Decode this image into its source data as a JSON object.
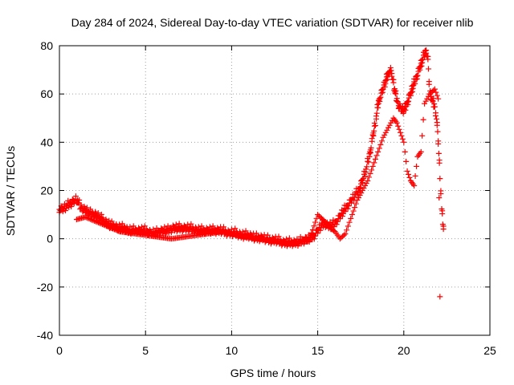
{
  "chart_data": {
    "type": "scatter",
    "title": "Day 284 of 2024, Sidereal Day-to-day VTEC variation (SDTVAR) for receiver nlib",
    "xlabel": "GPS time / hours",
    "ylabel": "SDTVAR / TECUs",
    "xlim": [
      0,
      25
    ],
    "ylim": [
      -40,
      80
    ],
    "xticks": [
      "0",
      "5",
      "10",
      "15",
      "20",
      "25"
    ],
    "yticks": [
      "-40",
      "-20",
      "0",
      "20",
      "40",
      "60",
      "80"
    ],
    "grid": true,
    "marker": "plus",
    "series_color": "#ff0000",
    "series": [
      {
        "name": "SDTVAR",
        "x": [
          0.0,
          0.2,
          0.4,
          0.6,
          0.8,
          1.0,
          1.2,
          1.4,
          1.6,
          1.8,
          2.0,
          2.2,
          2.4,
          2.6,
          2.8,
          3.0,
          3.2,
          3.4,
          3.6,
          3.8,
          4.0,
          4.3,
          4.6,
          5.0,
          5.3,
          5.6,
          6.0,
          6.3,
          6.6,
          7.0,
          7.3,
          7.6,
          8.0,
          8.3,
          8.7,
          9.0,
          9.4,
          9.8,
          10.2,
          10.6,
          11.0,
          11.4,
          11.8,
          12.2,
          12.6,
          13.0,
          13.4,
          13.8,
          14.2,
          14.6,
          14.8,
          15.0,
          15.2,
          15.4,
          15.6,
          15.8,
          16.0,
          16.2,
          16.4,
          16.6,
          16.8,
          17.0,
          17.2,
          17.4,
          17.6,
          17.8,
          18.0,
          18.1,
          18.2,
          18.3,
          18.4,
          18.5,
          18.6,
          18.7,
          18.8,
          18.9,
          19.0,
          19.1,
          19.2,
          19.3,
          19.4,
          19.5,
          19.6,
          19.7,
          19.8,
          19.9,
          20.0,
          20.1,
          20.2,
          20.3,
          20.4,
          20.5,
          20.6,
          20.7,
          20.8,
          20.9,
          21.0,
          21.1,
          21.2,
          21.3,
          21.4,
          21.5,
          21.6,
          21.7,
          21.8,
          21.9,
          22.0,
          22.1,
          22.2,
          22.3
        ],
        "y": [
          12,
          12,
          13,
          14,
          15,
          16,
          13,
          12,
          11,
          10,
          10,
          9,
          8,
          7,
          6,
          5,
          5,
          4,
          4,
          4,
          3,
          3,
          3,
          3,
          2,
          2,
          3,
          3,
          4,
          4,
          4,
          4,
          3,
          3,
          3,
          3,
          3,
          2,
          2,
          1,
          1,
          0,
          0,
          -1,
          -1,
          -2,
          -2,
          -2,
          -1,
          0,
          1,
          3,
          5,
          6,
          5,
          5,
          6,
          8,
          10,
          12,
          14,
          16,
          18,
          20,
          24,
          28,
          34,
          38,
          42,
          46,
          50,
          55,
          58,
          60,
          62,
          64,
          66,
          68,
          70,
          68,
          64,
          60,
          57,
          55,
          54,
          53,
          53,
          54,
          56,
          58,
          60,
          62,
          64,
          66,
          68,
          70,
          72,
          74,
          76,
          78,
          74,
          60,
          58,
          56,
          54,
          50,
          40,
          26,
          12,
          4
        ],
        "x2": [
          1.0,
          1.5,
          2.5,
          3.5,
          4.5,
          5.5,
          6.5,
          7.5,
          8.5,
          9.5,
          10.5,
          11.5,
          12.5,
          13.5,
          14.5,
          15.0,
          15.3,
          15.6,
          15.8,
          16.0,
          16.3,
          16.6,
          17.0,
          17.3,
          17.6,
          17.9,
          18.2,
          18.5,
          18.8,
          19.1,
          19.4,
          19.6,
          19.8,
          20.0,
          20.2,
          20.4,
          20.6,
          20.8,
          21.0,
          21.2,
          21.5,
          21.8,
          22.0,
          22.1
        ],
        "y2": [
          8,
          9,
          6,
          3,
          2,
          1,
          0,
          1,
          2,
          3,
          1,
          0,
          -1,
          -2,
          -1,
          10,
          8,
          6,
          4,
          3,
          0,
          2,
          10,
          16,
          20,
          24,
          30,
          36,
          42,
          46,
          50,
          48,
          44,
          40,
          28,
          24,
          22,
          34,
          36,
          56,
          60,
          62,
          58,
          -24
        ]
      }
    ]
  }
}
